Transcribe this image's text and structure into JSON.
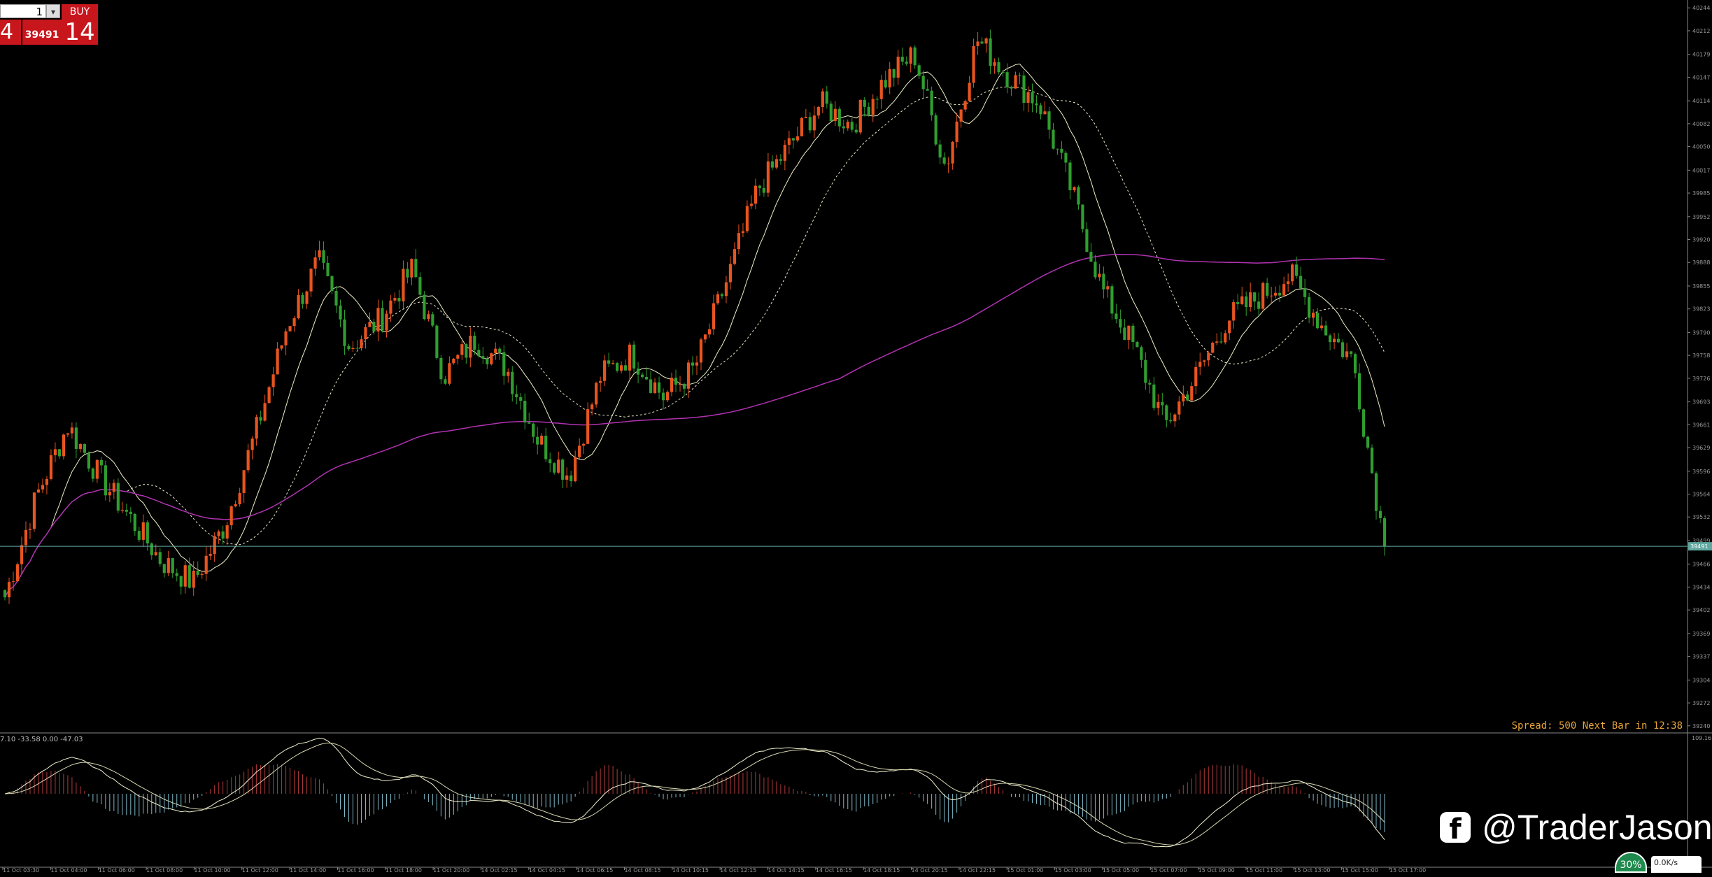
{
  "trade_panel": {
    "lot_value": "1",
    "step_glyph": "▾",
    "buy_label": "BUY",
    "sell_price_tail": "4",
    "mid_price": "39491",
    "buy_price_tail": "14"
  },
  "status": {
    "spread_text": "Spread: 500 Next Bar in 12:38"
  },
  "indicator": {
    "label": "7.10 -33.58 0.00 -47.03",
    "scale_top": "109.16"
  },
  "watermark": {
    "icon": "facebook-icon",
    "handle": "@TraderJason"
  },
  "network": {
    "percent": "30%",
    "speed": "0.0K/s"
  },
  "colors": {
    "bull": "#e8541f",
    "bear": "#2f9e2f",
    "ma_fast": "#f0f0c8",
    "ma_slow": "#e8e8c8",
    "ma_long": "#b032b0",
    "macd_pos": "#b23a3a",
    "macd_neg": "#7fb8c8",
    "price_line": "#5fa8a0"
  },
  "chart_data": {
    "type": "candlestick",
    "y_ticks": [
      40244,
      40212,
      40179,
      40147,
      40114,
      40082,
      40050,
      40017,
      39985,
      39952,
      39920,
      39888,
      39855,
      39823,
      39790,
      39758,
      39726,
      39693,
      39661,
      39629,
      39596,
      39564,
      39532,
      39499,
      39466,
      39434,
      39402,
      39369,
      39337,
      39304,
      39272,
      39240
    ],
    "current_price": 39491,
    "current_price_label": "39491",
    "ylim": [
      39230,
      40255
    ],
    "x_labels": [
      "11 Oct 03:30",
      "11 Oct 04:00",
      "11 Oct 06:00",
      "11 Oct 08:00",
      "11 Oct 10:00",
      "11 Oct 12:00",
      "11 Oct 14:00",
      "11 Oct 16:00",
      "11 Oct 18:00",
      "11 Oct 20:00",
      "14 Oct 02:15",
      "14 Oct 04:15",
      "14 Oct 06:15",
      "14 Oct 08:15",
      "14 Oct 10:15",
      "14 Oct 12:15",
      "14 Oct 14:15",
      "14 Oct 16:15",
      "14 Oct 18:15",
      "14 Oct 20:15",
      "14 Oct 22:15",
      "15 Oct 01:00",
      "15 Oct 03:00",
      "15 Oct 05:00",
      "15 Oct 07:00",
      "15 Oct 09:00",
      "15 Oct 11:00",
      "15 Oct 13:00",
      "15 Oct 15:00",
      "15 Oct 17:00"
    ],
    "key_closes": [
      39420,
      39560,
      39660,
      39590,
      39530,
      39470,
      39440,
      39520,
      39650,
      39800,
      39890,
      39770,
      39810,
      39880,
      39730,
      39780,
      39740,
      39640,
      39590,
      39730,
      39760,
      39700,
      39740,
      39860,
      39990,
      40050,
      40110,
      40080,
      40140,
      40180,
      40020,
      40200,
      40150,
      40110,
      39990,
      39850,
      39770,
      39660,
      39730,
      39810,
      39840,
      39870,
      39800,
      39750,
      39491
    ]
  }
}
